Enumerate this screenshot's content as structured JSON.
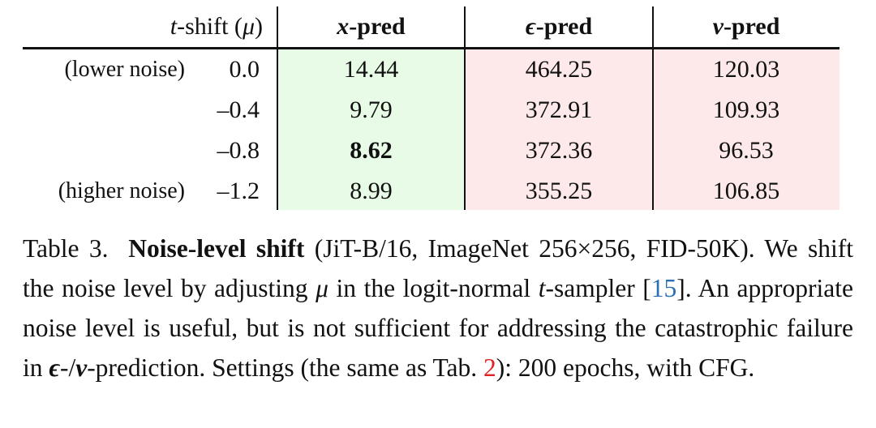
{
  "table": {
    "header": {
      "shift": [
        "t",
        "-shift (",
        "μ",
        ")"
      ],
      "columns": [
        [
          "x",
          "-pred"
        ],
        [
          "ϵ",
          "-pred"
        ],
        [
          "v",
          "-pred"
        ]
      ]
    },
    "rows": [
      {
        "note": "(lower noise)",
        "shift": "0.0",
        "values": [
          "14.44",
          "464.25",
          "120.03"
        ]
      },
      {
        "note": null,
        "shift": "–0.4",
        "values": [
          "9.79",
          "372.91",
          "109.93"
        ]
      },
      {
        "note": null,
        "shift": "–0.8",
        "values": [
          "8.62",
          "372.36",
          "96.53"
        ]
      },
      {
        "note": "(higher noise)",
        "shift": "–1.2",
        "values": [
          "8.99",
          "355.25",
          "106.85"
        ]
      }
    ]
  },
  "caption": {
    "segments": [
      "Table 3.",
      "Noise-level shift",
      " (JiT-B/16, ImageNet 256×256, FID-50K). We shift the noise level by adjusting ",
      "μ",
      " in the logit-normal ",
      "t",
      "-sampler [",
      "15",
      "]. An appropriate noise level is useful, but is not sufficient for addressing the catastrophic failure in ",
      "ϵ",
      "-/",
      "v",
      "-prediction. Settings (the same as Tab. ",
      "2",
      "): 200 epochs, with CFG."
    ]
  }
}
